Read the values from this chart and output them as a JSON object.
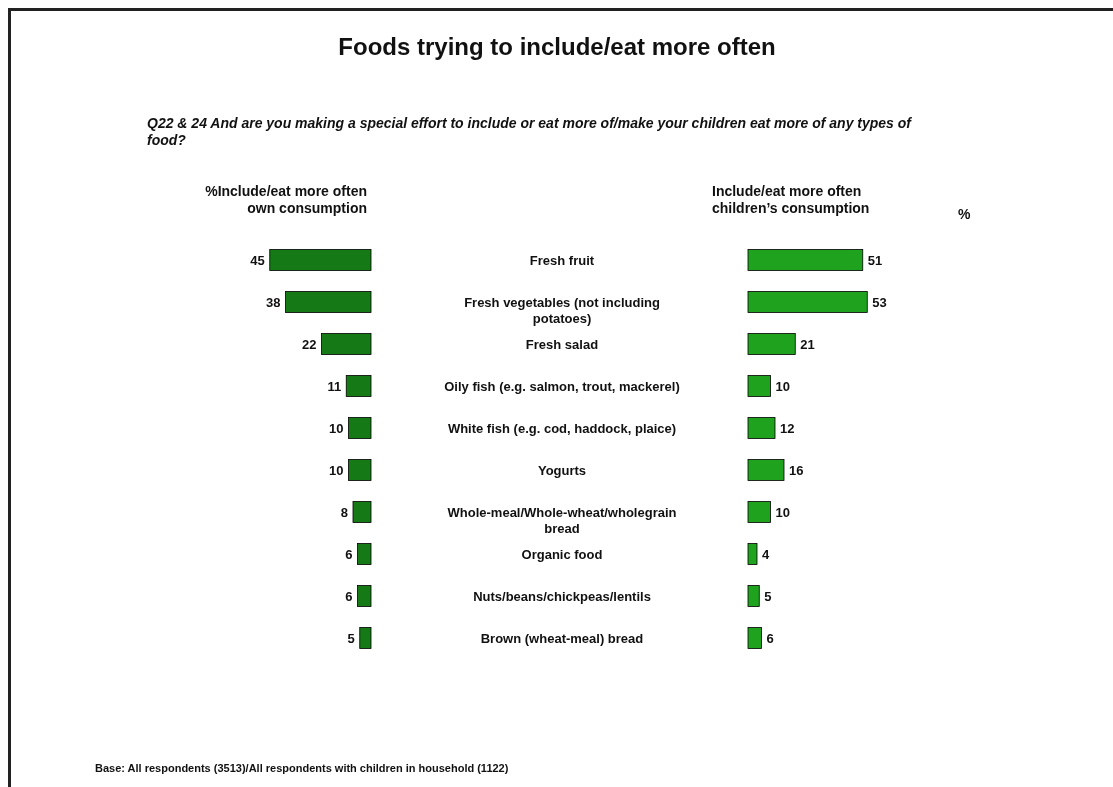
{
  "chart_data": [
    {
      "type": "bar",
      "orientation": "horizontal",
      "title": "Foods trying to include/eat more often",
      "subtitle": "Q22 & 24 And are you making a special effort to include or eat more of/make your children eat more of any types of food?",
      "xlabel": "%Include/eat more often own consumption",
      "categories": [
        "Fresh fruit",
        "Fresh vegetables (not including potatoes)",
        "Fresh salad",
        "Oily fish (e.g. salmon, trout, mackerel)",
        "White fish (e.g. cod, haddock, plaice)",
        "Yogurts",
        "Whole-meal/Whole-wheat/wholegrain bread",
        "Organic food",
        "Nuts/beans/chickpeas/lentils",
        "Brown (wheat-meal) bread"
      ],
      "series": [
        {
          "color": "#157a15",
          "values": [
            45,
            38,
            22,
            11,
            10,
            10,
            8,
            6,
            6,
            5
          ]
        }
      ],
      "tick_labels": "y",
      "data_labels": true,
      "annotations": [
        "Base: All respondents (3513)/All respondents with children in household (1122)"
      ]
    },
    {
      "type": "bar",
      "orientation": "horizontal",
      "xlabel": "Include/eat more often children’s consumption",
      "categories": [
        null,
        null,
        null,
        null,
        null,
        null,
        null,
        null,
        null,
        null
      ],
      "series": [
        {
          "color": "#1fa31f",
          "values": [
            51,
            53,
            21,
            10,
            12,
            16,
            10,
            4,
            5,
            6
          ]
        }
      ],
      "tick_labels": false,
      "data_labels": true,
      "annotations": [
        "%"
      ]
    }
  ]
}
